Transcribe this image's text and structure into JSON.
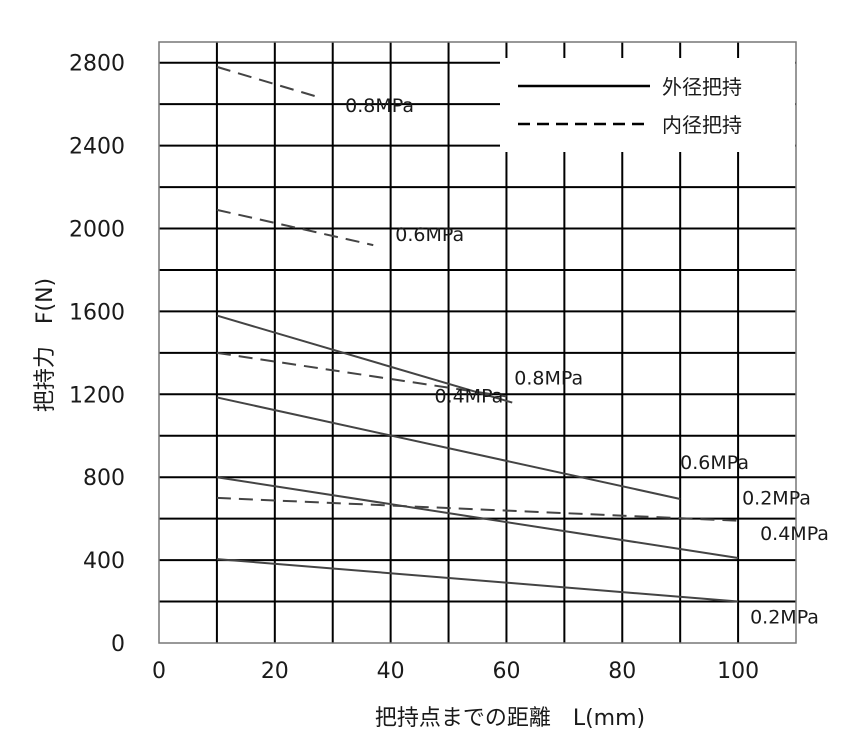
{
  "chart_data": {
    "type": "line",
    "xlabel": "把持点までの距離　L(mm)",
    "ylabel": "把持力　F(N)",
    "xlim": [
      0,
      110
    ],
    "ylim": [
      0,
      2900
    ],
    "xticks": [
      0,
      20,
      40,
      60,
      80,
      100
    ],
    "yticks": [
      0,
      400,
      800,
      1200,
      1600,
      2000,
      2400,
      2800
    ],
    "grid": {
      "x_step": 10,
      "y_step": 200
    },
    "legend": {
      "placement": "top-right",
      "entries": [
        {
          "label": "外径把持",
          "style": "solid"
        },
        {
          "label": "内径把持",
          "style": "dashed"
        }
      ]
    },
    "series": [
      {
        "group": "外径把持",
        "label": "0.8MPa",
        "style": "solid",
        "x": [
          10,
          61
        ],
        "y": [
          1580,
          1160
        ]
      },
      {
        "group": "外径把持",
        "label": "0.6MPa",
        "style": "solid",
        "x": [
          10,
          90
        ],
        "y": [
          1185,
          695
        ]
      },
      {
        "group": "外径把持",
        "label": "0.4MPa",
        "style": "solid",
        "x": [
          10,
          100
        ],
        "y": [
          800,
          410
        ]
      },
      {
        "group": "外径把持",
        "label": "0.2MPa",
        "style": "solid",
        "x": [
          10,
          100
        ],
        "y": [
          405,
          200
        ]
      },
      {
        "group": "内径把持",
        "label": "0.8MPa",
        "style": "dashed",
        "x": [
          10,
          28
        ],
        "y": [
          2780,
          2630
        ]
      },
      {
        "group": "内径把持",
        "label": "0.6MPa",
        "style": "dashed",
        "x": [
          10,
          37
        ],
        "y": [
          2090,
          1920
        ]
      },
      {
        "group": "内径把持",
        "label": "0.4MPa",
        "style": "dashed",
        "x": [
          10,
          60
        ],
        "y": [
          1400,
          1190
        ]
      },
      {
        "group": "内径把持",
        "label": "0.2MPa",
        "style": "dashed",
        "x": [
          10,
          100
        ],
        "y": [
          700,
          590
        ]
      }
    ]
  }
}
